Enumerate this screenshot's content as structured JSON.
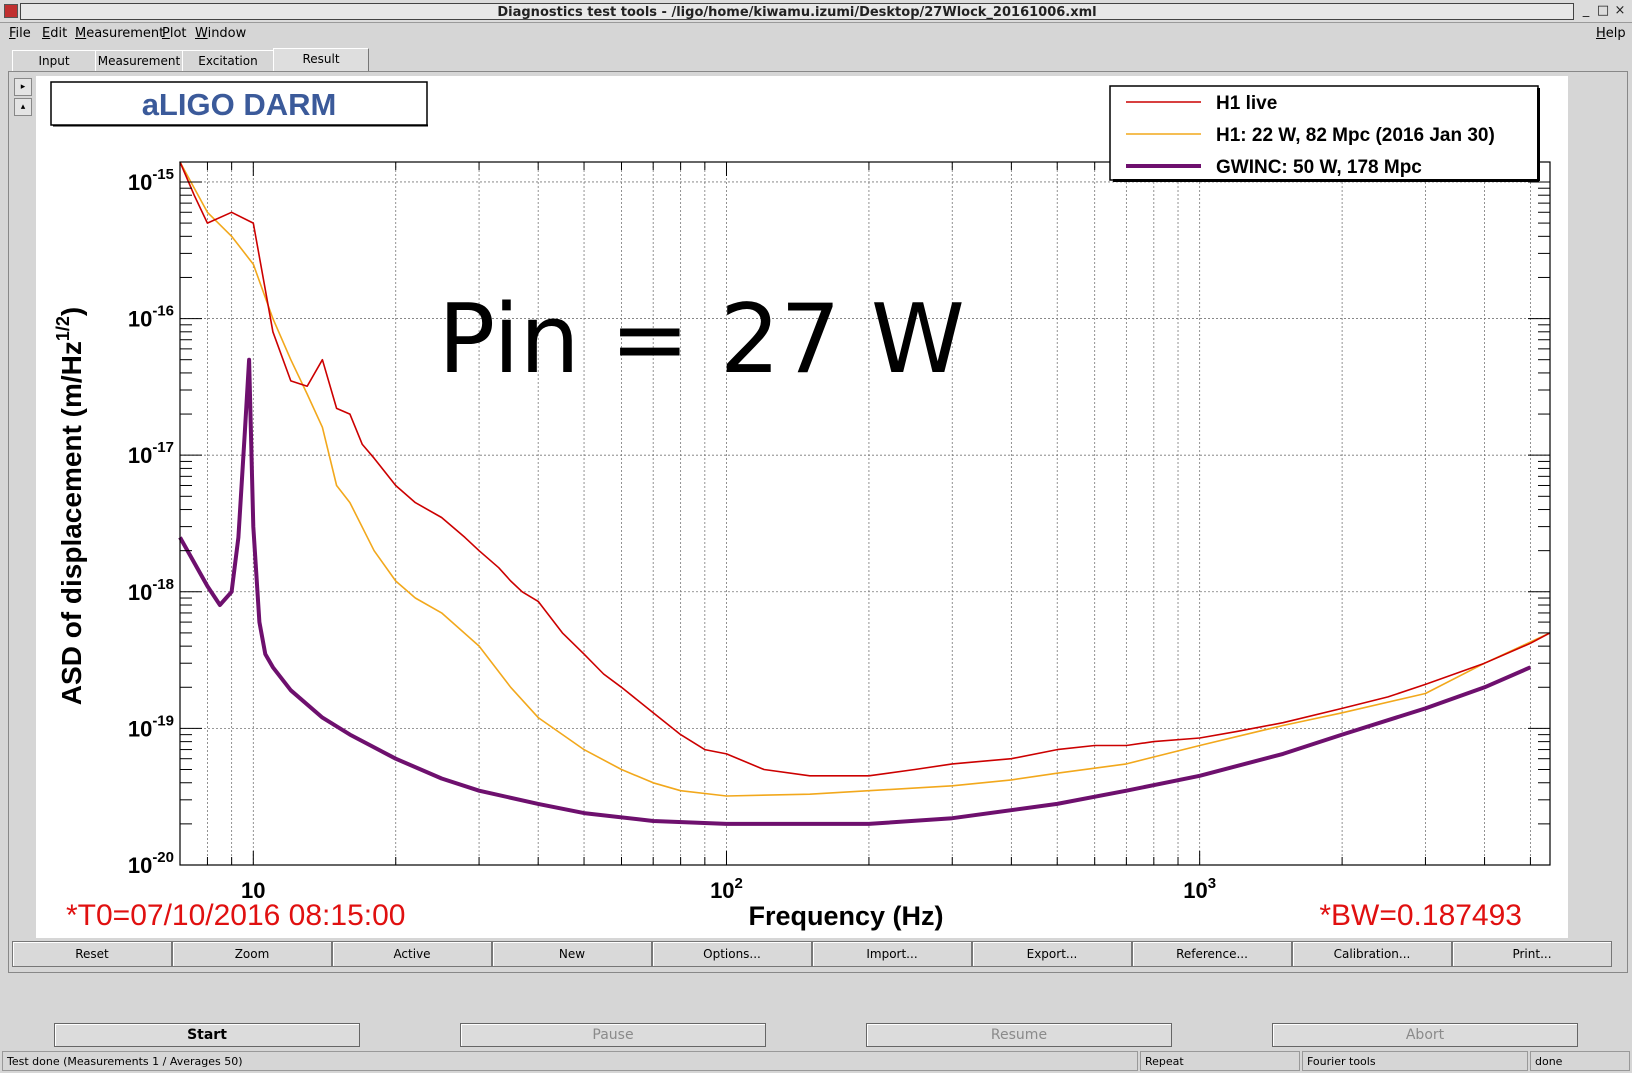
{
  "window": {
    "title": "Diagnostics test tools - /ligo/home/kiwamu.izumi/Desktop/27Wlock_20161006.xml",
    "controls": [
      "_",
      "□",
      "×"
    ]
  },
  "menu": {
    "left": [
      "File",
      "Edit",
      "Measurement",
      "Plot",
      "Window"
    ],
    "right": "Help"
  },
  "tabs": [
    "Input",
    "Measurement",
    "Excitation",
    "Result"
  ],
  "active_tab": "Result",
  "side_buttons": [
    "▸",
    "▴"
  ],
  "plot": {
    "title_box": "aLIGO DARM",
    "annotation": "Pin = 27 W",
    "t0": "*T0=07/10/2016 08:15:00",
    "bw": "*BW=0.187493"
  },
  "chart_data": {
    "type": "line",
    "title": "aLIGO DARM",
    "xlabel": "Frequency (Hz)",
    "ylabel_main": "ASD of displacement (m/Hz",
    "ylabel_sup": "1/2",
    "ylabel_close": ")",
    "x_scale": "log",
    "y_scale": "log",
    "xlim": [
      7,
      5500
    ],
    "ylim": [
      1e-20,
      1.4e-15
    ],
    "x_tick_labels": [
      {
        "value": 10,
        "base": "10",
        "exp": ""
      },
      {
        "value": 100,
        "base": "10",
        "exp": "2"
      },
      {
        "value": 1000,
        "base": "10",
        "exp": "3"
      }
    ],
    "y_tick_labels": [
      {
        "value": 1e-15,
        "base": "10",
        "exp": "-15"
      },
      {
        "value": 1e-16,
        "base": "10",
        "exp": "-16"
      },
      {
        "value": 1e-17,
        "base": "10",
        "exp": "-17"
      },
      {
        "value": 1e-18,
        "base": "10",
        "exp": "-18"
      },
      {
        "value": 1e-19,
        "base": "10",
        "exp": "-19"
      },
      {
        "value": 1e-20,
        "base": "10",
        "exp": "-20"
      }
    ],
    "grid": true,
    "legend_position": "top-right",
    "series": [
      {
        "name": "H1 live",
        "color": "#cc0000",
        "x": [
          7,
          7.5,
          8,
          9,
          10,
          11,
          12,
          13,
          14,
          15,
          16,
          17,
          18,
          20,
          22,
          25,
          28,
          30,
          33,
          35,
          37,
          40,
          45,
          50,
          55,
          60,
          70,
          80,
          90,
          100,
          120,
          150,
          200,
          250,
          300,
          400,
          500,
          600,
          700,
          800,
          1000,
          1200,
          1500,
          2000,
          2500,
          3000,
          4000,
          5000,
          5500
        ],
        "y": [
          1.6e-15,
          8e-16,
          5e-16,
          6e-16,
          5e-16,
          8e-17,
          3.5e-17,
          3.2e-17,
          5e-17,
          2.2e-17,
          2e-17,
          1.2e-17,
          9.5e-18,
          6e-18,
          4.5e-18,
          3.5e-18,
          2.5e-18,
          2e-18,
          1.5e-18,
          1.2e-18,
          1e-18,
          8.5e-19,
          5e-19,
          3.5e-19,
          2.5e-19,
          2e-19,
          1.3e-19,
          9e-20,
          7e-20,
          6.5e-20,
          5e-20,
          4.5e-20,
          4.5e-20,
          5e-20,
          5.5e-20,
          6e-20,
          7e-20,
          7.5e-20,
          7.5e-20,
          8e-20,
          8.5e-20,
          9.5e-20,
          1.1e-19,
          1.4e-19,
          1.7e-19,
          2.1e-19,
          3e-19,
          4.2e-19,
          5e-19
        ]
      },
      {
        "name": "H1: 22 W, 82 Mpc (2016 Jan 30)",
        "color": "#f2a81c",
        "x": [
          7,
          8,
          9,
          10,
          11,
          12,
          13,
          14,
          15,
          16,
          18,
          20,
          22,
          25,
          30,
          35,
          40,
          50,
          60,
          70,
          80,
          100,
          150,
          200,
          300,
          400,
          500,
          700,
          1000,
          1500,
          2000,
          3000,
          4000,
          5500
        ],
        "y": [
          1.4e-15,
          6e-16,
          4e-16,
          2.5e-16,
          1e-16,
          5e-17,
          2.8e-17,
          1.6e-17,
          6e-18,
          4.5e-18,
          2e-18,
          1.2e-18,
          9e-19,
          7e-19,
          4e-19,
          2e-19,
          1.2e-19,
          7e-20,
          5e-20,
          4e-20,
          3.5e-20,
          3.2e-20,
          3.3e-20,
          3.5e-20,
          3.8e-20,
          4.2e-20,
          4.7e-20,
          5.5e-20,
          7.5e-20,
          1.05e-19,
          1.3e-19,
          1.8e-19,
          3e-19,
          5e-19
        ]
      },
      {
        "name": "GWINC: 50 W, 178 Mpc",
        "color": "#6e106e",
        "x": [
          7,
          8,
          8.5,
          9,
          9.3,
          9.6,
          9.8,
          10,
          10.3,
          10.6,
          11,
          12,
          14,
          16,
          20,
          25,
          30,
          40,
          50,
          70,
          100,
          130,
          200,
          300,
          500,
          700,
          1000,
          1500,
          2000,
          3000,
          4000,
          5000
        ],
        "y": [
          2.5e-18,
          1.1e-18,
          8e-19,
          1e-18,
          2.5e-18,
          1.5e-17,
          5e-17,
          3e-18,
          6e-19,
          3.5e-19,
          2.8e-19,
          1.9e-19,
          1.2e-19,
          9e-20,
          6e-20,
          4.3e-20,
          3.5e-20,
          2.8e-20,
          2.4e-20,
          2.1e-20,
          2e-20,
          2e-20,
          2e-20,
          2.2e-20,
          2.8e-20,
          3.5e-20,
          4.5e-20,
          6.5e-20,
          9e-20,
          1.4e-19,
          2e-19,
          2.8e-19
        ]
      }
    ]
  },
  "buttons_row1": [
    "Reset",
    "Zoom",
    "Active",
    "New",
    "Options...",
    "Import...",
    "Export...",
    "Reference...",
    "Calibration...",
    "Print..."
  ],
  "buttons_row2": [
    {
      "label": "Start",
      "enabled": true
    },
    {
      "label": "Pause",
      "enabled": false
    },
    {
      "label": "Resume",
      "enabled": false
    },
    {
      "label": "Abort",
      "enabled": false
    }
  ],
  "status_bar": [
    "Test done (Measurements 1 / Averages 50)",
    "Repeat",
    "Fourier tools",
    "done"
  ]
}
